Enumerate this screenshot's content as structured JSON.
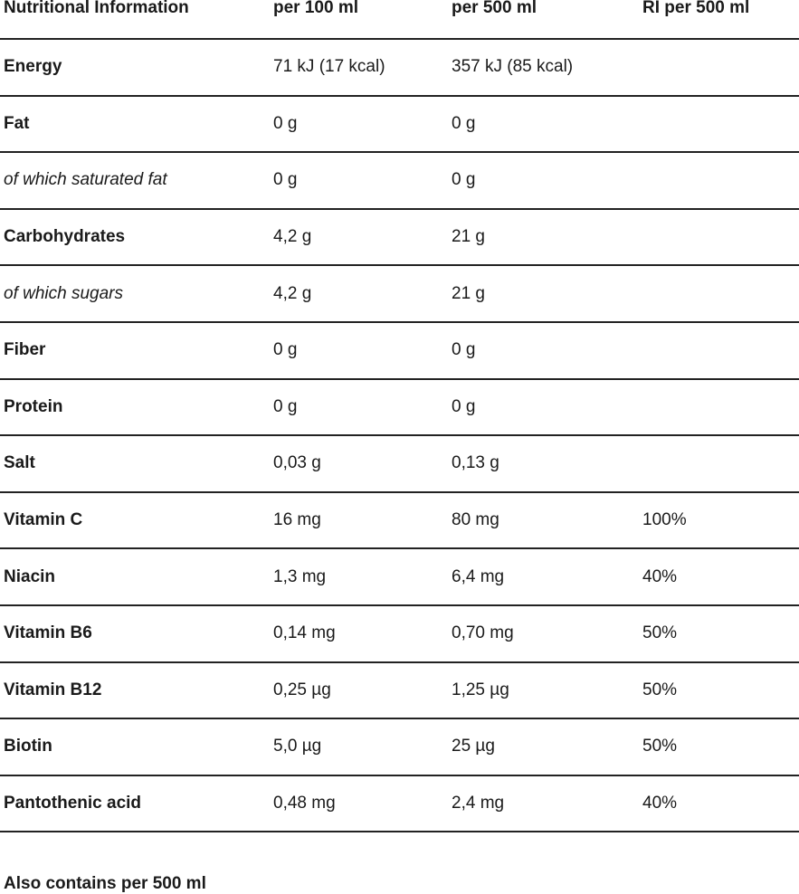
{
  "table": {
    "headers": [
      "Nutritional Information",
      "per 100 ml",
      "per 500 ml",
      "RI per 500 ml"
    ],
    "rows": [
      {
        "label": "Energy",
        "style": "bold",
        "per100": "71 kJ (17 kcal)",
        "per500": "357 kJ (85 kcal)",
        "ri": ""
      },
      {
        "label": "Fat",
        "style": "bold",
        "per100": "0 g",
        "per500": "0 g",
        "ri": ""
      },
      {
        "label": "of which saturated fat",
        "style": "italic",
        "per100": "0 g",
        "per500": "0 g",
        "ri": ""
      },
      {
        "label": "Carbohydrates",
        "style": "bold",
        "per100": "4,2 g",
        "per500": "21 g",
        "ri": ""
      },
      {
        "label": "of which sugars",
        "style": "italic",
        "per100": "4,2 g",
        "per500": "21 g",
        "ri": ""
      },
      {
        "label": "Fiber",
        "style": "bold",
        "per100": "0 g",
        "per500": "0 g",
        "ri": ""
      },
      {
        "label": "Protein",
        "style": "bold",
        "per100": "0 g",
        "per500": "0 g",
        "ri": ""
      },
      {
        "label": "Salt",
        "style": "bold",
        "per100": "0,03 g",
        "per500": "0,13 g",
        "ri": ""
      },
      {
        "label": "Vitamin C",
        "style": "bold",
        "per100": "16 mg",
        "per500": "80 mg",
        "ri": "100%"
      },
      {
        "label": "Niacin",
        "style": "bold",
        "per100": "1,3 mg",
        "per500": "6,4 mg",
        "ri": "40%"
      },
      {
        "label": "Vitamin B6",
        "style": "bold",
        "per100": "0,14 mg",
        "per500": "0,70 mg",
        "ri": "50%"
      },
      {
        "label": "Vitamin B12",
        "style": "bold",
        "per100": "0,25 µg",
        "per500": "1,25 µg",
        "ri": "50%"
      },
      {
        "label": "Biotin",
        "style": "bold",
        "per100": "5,0 µg",
        "per500": "25 µg",
        "ri": "50%"
      },
      {
        "label": "Pantothenic acid",
        "style": "bold",
        "per100": "0,48 mg",
        "per500": "2,4 mg",
        "ri": "40%"
      }
    ]
  },
  "footer": {
    "text": "Also contains per 500 ml"
  },
  "colors": {
    "text": "#1a1a1a",
    "rule": "#222222",
    "background": "#ffffff"
  }
}
